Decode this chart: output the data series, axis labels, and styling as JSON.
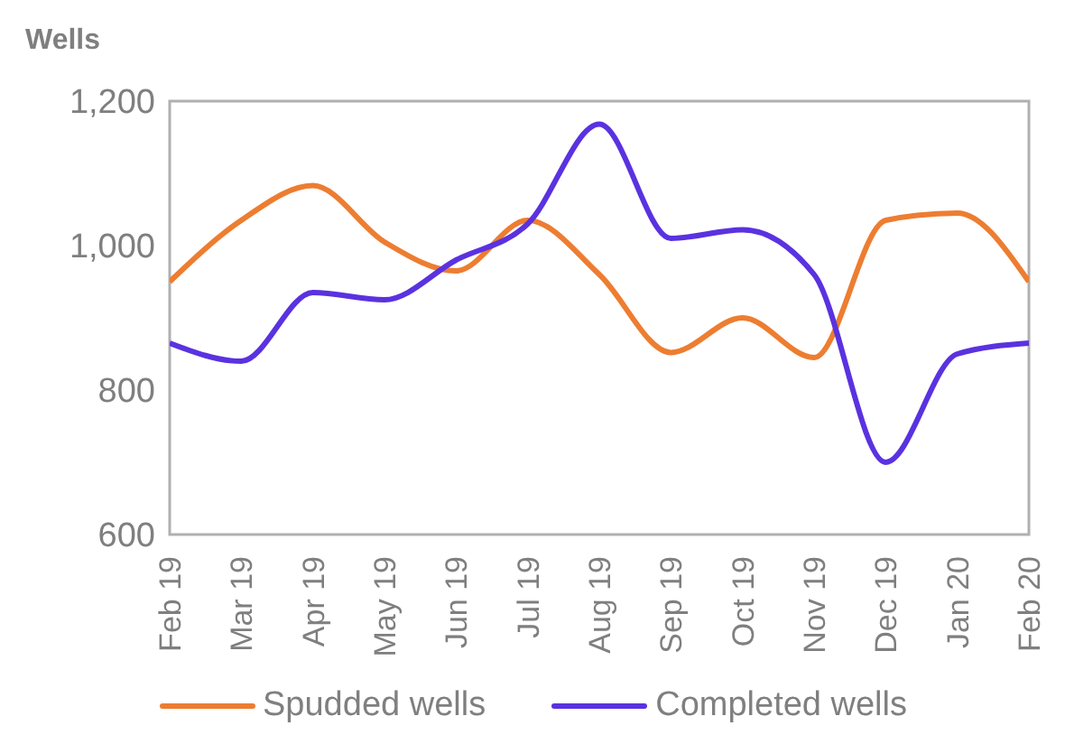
{
  "chart_data": {
    "type": "line",
    "ylabel": "Wells",
    "categories": [
      "Feb 19",
      "Mar 19",
      "Apr 19",
      "May 19",
      "Jun 19",
      "Jul 19",
      "Aug 19",
      "Sep 19",
      "Oct 19",
      "Nov 19",
      "Dec 19",
      "Jan 20",
      "Feb 20"
    ],
    "series": [
      {
        "name": "Spudded wells",
        "color": "#ed7d31",
        "values": [
          950,
          1035,
          1083,
          1005,
          965,
          1035,
          960,
          852,
          900,
          845,
          1035,
          1045,
          950
        ]
      },
      {
        "name": "Completed wells",
        "color": "#5a32e0",
        "values": [
          865,
          840,
          935,
          925,
          980,
          1030,
          1168,
          1010,
          1022,
          960,
          700,
          850,
          865
        ]
      }
    ],
    "ylim": [
      600,
      1200
    ],
    "yticks": [
      600,
      800,
      {
        "value": 1000,
        "label": "1,000"
      },
      {
        "value": 1200,
        "label": "1,200"
      }
    ],
    "grid": false,
    "legend": "bottom",
    "marker": "none",
    "line_style": "solid"
  }
}
